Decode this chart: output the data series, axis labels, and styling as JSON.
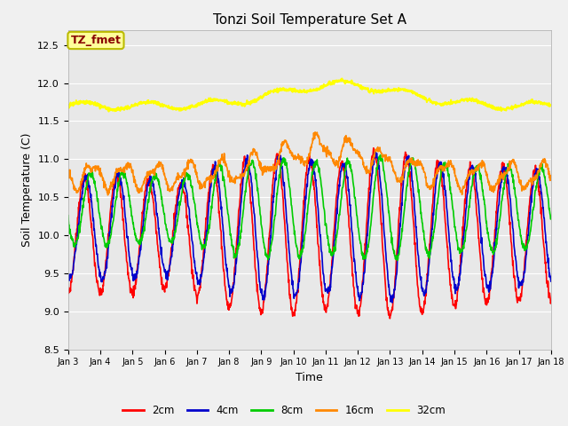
{
  "title": "Tonzi Soil Temperature Set A",
  "xlabel": "Time",
  "ylabel": "Soil Temperature (C)",
  "ylim": [
    8.5,
    12.7
  ],
  "xlim": [
    0,
    15
  ],
  "fig_bg_color": "#f0f0f0",
  "plot_bg_color": "#e8e8e8",
  "annotation_text": "TZ_fmet",
  "annotation_bg": "#ffff99",
  "annotation_edge": "#bbbb00",
  "annotation_fg": "#880000",
  "tick_labels": [
    "Jan 3",
    "Jan 4",
    "Jan 5",
    "Jan 6",
    "Jan 7",
    "Jan 8",
    "Jan 9",
    "Jan 10",
    "Jan 11",
    "Jan 12",
    "Jan 13",
    "Jan 14",
    "Jan 15",
    "Jan 16",
    "Jan 17",
    "Jan 18"
  ],
  "legend_labels": [
    "2cm",
    "4cm",
    "8cm",
    "16cm",
    "32cm"
  ],
  "line_colors": [
    "#ff0000",
    "#0000cc",
    "#00cc00",
    "#ff8800",
    "#ffff00"
  ],
  "line_widths": [
    1.2,
    1.2,
    1.2,
    1.2,
    1.5
  ]
}
